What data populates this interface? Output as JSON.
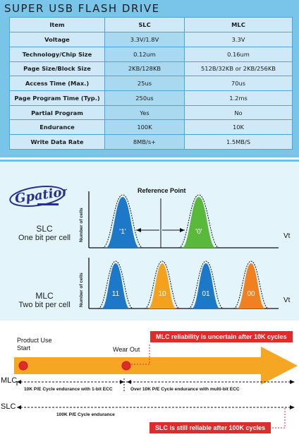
{
  "title": "SUPER USB FLASH DRIVE",
  "table": {
    "headers": [
      "Item",
      "SLC",
      "MLC"
    ],
    "rows": [
      [
        "Voltage",
        "3.3V/1.8V",
        "3.3V"
      ],
      [
        "Technology/Chip Size",
        "0.12um",
        "0.16um"
      ],
      [
        "Page Size/Block Size",
        "2KB/128KB",
        "512B/32KB or 2KB/256KB"
      ],
      [
        "Access Time (Max.)",
        "25us",
        "70us"
      ],
      [
        "Page Program Time (Typ.)",
        "250us",
        "1.2ms"
      ],
      [
        "Partial Program",
        "Yes",
        "No"
      ],
      [
        "Endurance",
        "100K",
        "10K"
      ],
      [
        "Write Data Rate",
        "8MB/s+",
        "1.5MB/S"
      ]
    ]
  },
  "logo_text": "Gpation",
  "slc_panel": {
    "label": "SLC",
    "sublabel": "One bit per cell",
    "y_axis": "Number of cells",
    "x_axis": "Vt",
    "reference": "Reference Point",
    "peaks": [
      {
        "label": "'1'",
        "color": "#1e78c8"
      },
      {
        "label": "'0'",
        "color": "#5ab83a"
      }
    ]
  },
  "mlc_panel": {
    "label": "MLC",
    "sublabel": "Two bit per cell",
    "y_axis": "Number of cells",
    "x_axis": "Vt",
    "peaks": [
      {
        "label": "11",
        "color": "#1e78c8"
      },
      {
        "label": "10",
        "color": "#f4a21e"
      },
      {
        "label": "01",
        "color": "#1e78c8"
      },
      {
        "label": "00",
        "color": "#f08020"
      }
    ]
  },
  "lifecycle": {
    "product_use_start": "Product Use Start",
    "wear_out": "Wear Out",
    "mlc_note": "MLC reliability is uncertain after 10K cycles",
    "mlc_row": "MLC",
    "slc_row": "SLC",
    "mlc_seg1": "10K P/E Cycle endurance with 1-bit ECC",
    "mlc_seg2": "Over 10K P/E Cycle endurance with multi-bit ECC",
    "slc_seg": "100K P/E Cycle endurance",
    "slc_note": "SLC is still reliable after 100K cycles"
  },
  "colors": {
    "top_bg": "#79c5ea",
    "arrow": "#f5a623",
    "marker": "#e12a2a"
  }
}
